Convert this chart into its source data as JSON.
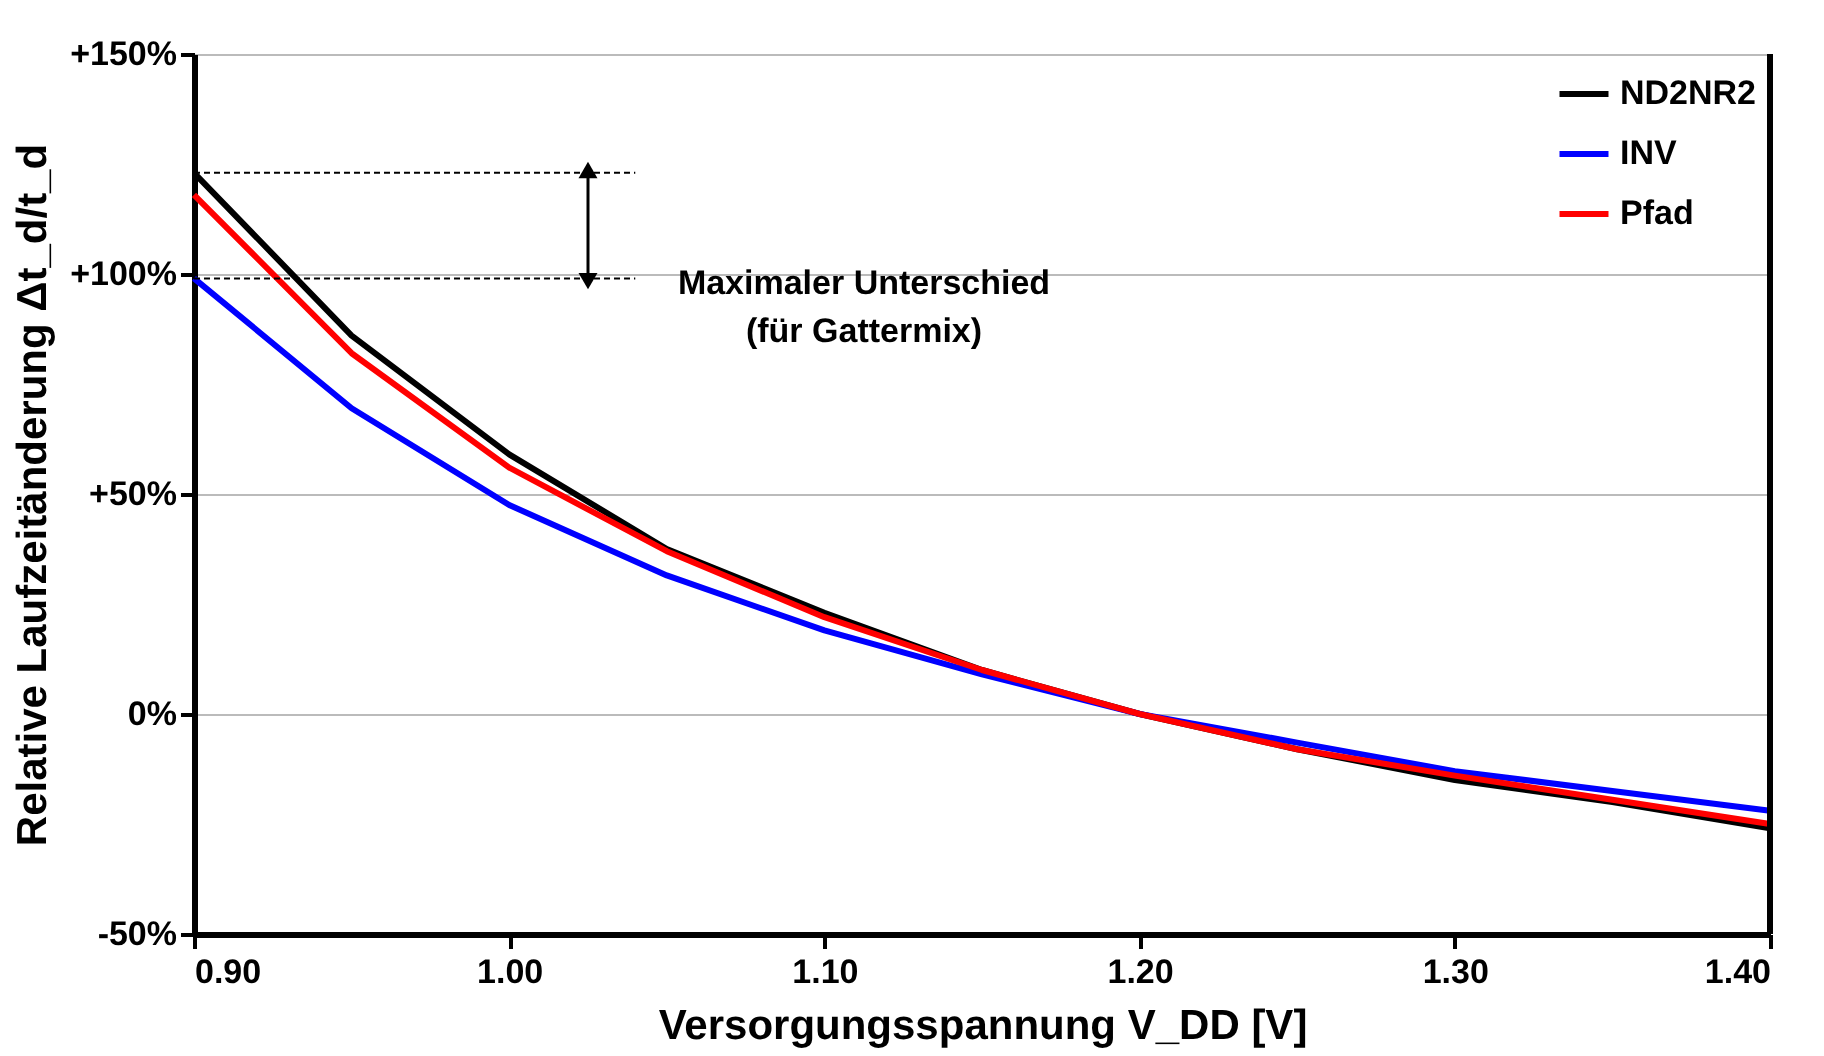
{
  "chart_data": {
    "type": "line",
    "xlabel": "Versorgungsspannung V_DD [V]",
    "ylabel": "Relative Laufzeitänderung Δt_d/t_d",
    "x": [
      0.9,
      0.95,
      1.0,
      1.05,
      1.1,
      1.15,
      1.2,
      1.25,
      1.3,
      1.35,
      1.4
    ],
    "series": [
      {
        "name": "ND2NR2",
        "color": "#000000",
        "values": [
          123,
          86,
          59,
          37.5,
          23,
          10,
          0,
          -8,
          -15,
          -20,
          -26
        ]
      },
      {
        "name": "INV",
        "color": "#0000ff",
        "values": [
          99,
          69.5,
          47.5,
          31.5,
          19,
          9,
          0,
          -6.5,
          -13,
          -17.5,
          -22
        ]
      },
      {
        "name": "Pfad",
        "color": "#ff0000",
        "values": [
          118,
          82,
          56,
          37,
          22,
          10,
          0,
          -8,
          -14,
          -19.5,
          -25
        ]
      }
    ],
    "xlim": [
      0.9,
      1.4
    ],
    "xticks": [
      {
        "value": 0.9,
        "label": "0.90"
      },
      {
        "value": 1.0,
        "label": "1.00"
      },
      {
        "value": 1.1,
        "label": "1.10"
      },
      {
        "value": 1.2,
        "label": "1.20"
      },
      {
        "value": 1.3,
        "label": "1.30"
      },
      {
        "value": 1.4,
        "label": "1.40"
      }
    ],
    "ylim": [
      -50,
      150
    ],
    "yticks": [
      {
        "value": -50,
        "label": "-50%"
      },
      {
        "value": 0,
        "label": "0%"
      },
      {
        "value": 50,
        "label": "+50%"
      },
      {
        "value": 100,
        "label": "+100%"
      },
      {
        "value": 150,
        "label": "+150%"
      }
    ],
    "annotations": [
      "Maximaler Unterschied\n(für Gattermix)"
    ],
    "ref_lines": [
      {
        "axis": "y",
        "value": 123,
        "label": null,
        "color": "#000000",
        "line_style": "dotted"
      },
      {
        "axis": "y",
        "value": 99,
        "label": null,
        "color": "#000000",
        "line_style": "dotted"
      }
    ],
    "grid": "y",
    "legend": "top right",
    "marker": "none",
    "line_style": "solid"
  }
}
